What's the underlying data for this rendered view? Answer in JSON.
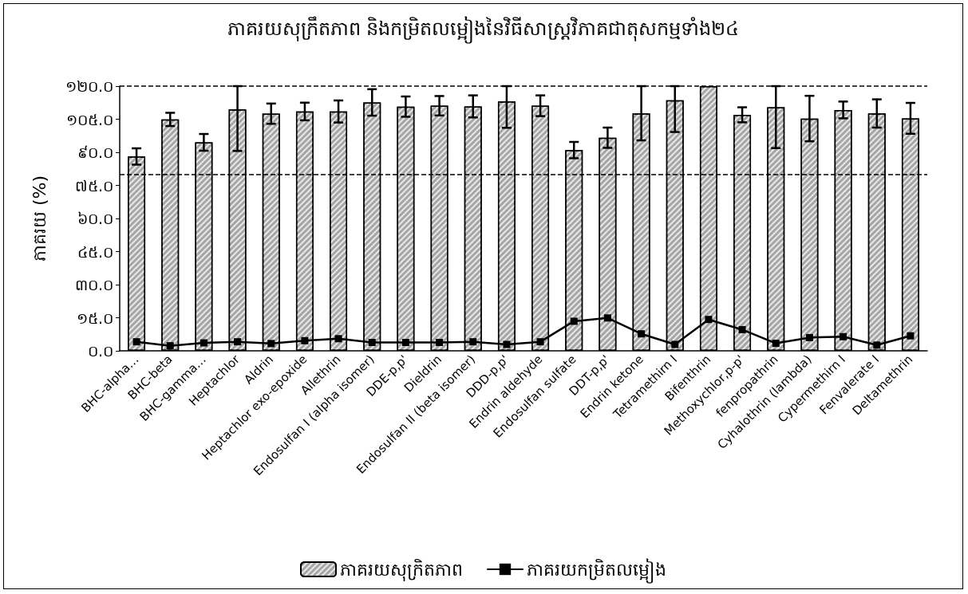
{
  "chart_data": {
    "type": "bar",
    "title": "ភាគរយសុក្រឹតភាព និងកម្រិតលម្អៀងនៃវិធីសាស្ត្រវិភាគជាតុសកម្មទាំង២៤",
    "ylabel": "ភាគរយ (%)",
    "categories": [
      "BHC-alpha…",
      "BHC-beta",
      "BHC-gamma…",
      "Heptachlor",
      "Aldrin",
      "Heptachlor exo-epoxide",
      "Allethrin",
      "Endosulfan I (alpha isomer)",
      "DDE-p,p'",
      "Dieldrin",
      "Endosulfan II (beta isomer)",
      "DDD-p,p'",
      "Endrin aldehyde",
      "Endosulfan sulfate",
      "DDT-p,p'",
      "Endrin ketone",
      "Tetramethirn I",
      "Bifenthrin",
      "Methoxychlor,p-p'",
      "fenpropathrin",
      "Cyhalothrin (lambda)",
      "Cypermethirn I",
      "Fenvalerate I",
      "Deltamethrin"
    ],
    "series": [
      {
        "name": "ភាគរយសុក្រិតភាព",
        "color": "#a6a6a6",
        "values": [
          88.1,
          104.9,
          94.5,
          109.4,
          107.5,
          108.5,
          108.5,
          112.6,
          110.7,
          111.1,
          110.8,
          113.0,
          111.1,
          91.0,
          96.6,
          107.6,
          113.6,
          120.0,
          107.0,
          110.4,
          105.3,
          109.2,
          107.6,
          105.4
        ],
        "errors": [
          3.7,
          3.0,
          3.8,
          [
            90.6,
            120
          ],
          4.6,
          4.0,
          5.0,
          6.0,
          4.6,
          4.4,
          5.0,
          [
            101.1,
            120
          ],
          4.7,
          3.7,
          4.6,
          [
            95.4,
            120
          ],
          [
            99.2,
            120
          ],
          null,
          3.4,
          [
            91.9,
            120
          ],
          10.3,
          3.8,
          6.4,
          7.0
        ]
      },
      {
        "name": "ភាគរយកម្រិតលម្អៀង",
        "type": "line",
        "color": "#000000",
        "marker": "square",
        "line_style": "solid",
        "values": [
          4.1,
          2.3,
          3.6,
          4.1,
          3.3,
          4.6,
          5.5,
          3.8,
          3.8,
          3.8,
          4.1,
          2.9,
          4.1,
          13.4,
          14.9,
          7.7,
          2.9,
          14.2,
          9.6,
          3.4,
          6.0,
          6.4,
          2.6,
          6.8
        ]
      }
    ],
    "ylim": [
      0,
      120
    ],
    "yticks": [
      {
        "value": 0,
        "label": "០.០"
      },
      {
        "value": 15,
        "label": "១៥.០"
      },
      {
        "value": 30,
        "label": "៣០.០"
      },
      {
        "value": 45,
        "label": "៤៥.០"
      },
      {
        "value": 60,
        "label": "៦០.០"
      },
      {
        "value": 75,
        "label": "៧៥.០"
      },
      {
        "value": 90,
        "label": "៩០.០"
      },
      {
        "value": 105,
        "label": "១០៥.០"
      },
      {
        "value": 120,
        "label": "១២០.០"
      }
    ],
    "ref_lines": [
      {
        "axis": "y",
        "value": 120,
        "color": "#000000",
        "line_style": "dashed"
      },
      {
        "axis": "y",
        "value": 80,
        "color": "#000000",
        "line_style": "dashed"
      }
    ],
    "grid": false,
    "legend": "bottom"
  }
}
